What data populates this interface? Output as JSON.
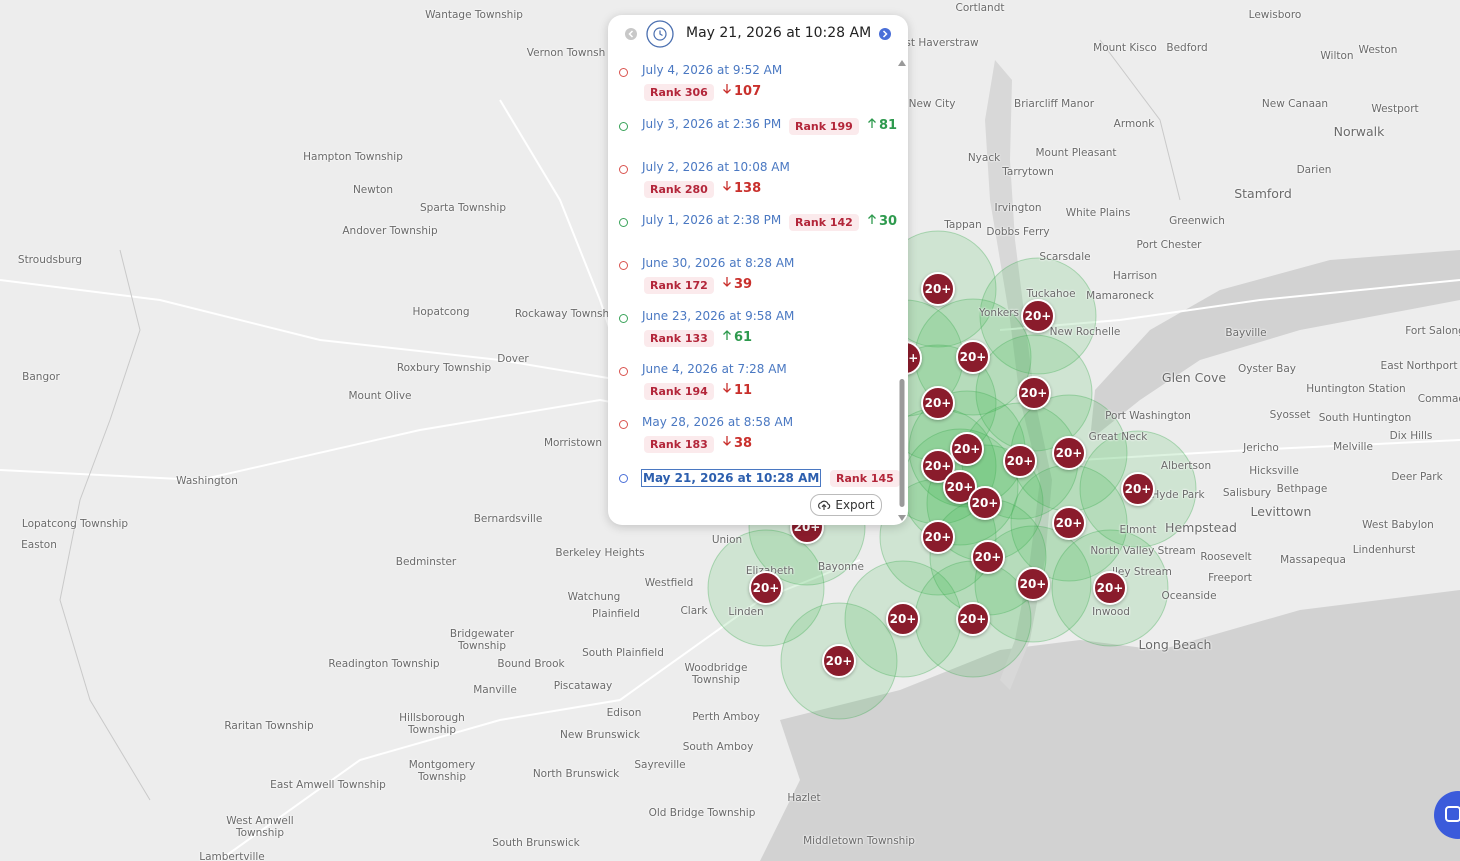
{
  "map": {
    "cluster_label": "20+",
    "places": [
      "Wantage Township",
      "Vernon Townsh",
      "Cortlandt",
      "Lewisboro",
      "Mount Kisco",
      "Bedford",
      "Wilton",
      "Weston",
      "st Haverstraw",
      "Hampton Township",
      "Newton",
      "Sparta Township",
      "Andover Township",
      "Stroudsburg",
      "Hopatcong",
      "Rockaway Townsh",
      "Dover",
      "Roxbury Township",
      "Bangor",
      "Mount Olive",
      "Morristown",
      "Washington",
      "Bernardsville",
      "Lopatcong Township",
      "Easton",
      "Berkeley Heights",
      "Bedminster",
      "Westfield",
      "Watchung",
      "Plainfield",
      "Clark",
      "Bridgewater Township",
      "Readington Township",
      "Bound Brook",
      "South Plainfield",
      "Manville",
      "Piscataway",
      "Woodbridge Township",
      "Raritan Township",
      "Hillsborough Township",
      "Edison",
      "Perth Amboy",
      "New Brunswick",
      "South Amboy",
      "Montgomery Township",
      "Sayreville",
      "North Brunswick",
      "East Amwell Township",
      "Hazlet",
      "Old Bridge Township",
      "West Amwell Township",
      "South Brunswick",
      "Middletown Township",
      "Lambertville",
      "Union",
      "Elizabeth",
      "Bayonne",
      "Linden",
      "New City",
      "Briarcliff Manor",
      "Armonk",
      "New Canaan",
      "Westport",
      "Norwalk",
      "Nyack",
      "Mount Pleasant",
      "Tarrytown",
      "Darien",
      "Stamford",
      "Irvington",
      "White Plains",
      "Greenwich",
      "Tappan",
      "Dobbs Ferry",
      "Port Chester",
      "Scarsdale",
      "Harrison",
      "Tuckahoe",
      "Mamaroneck",
      "Yonkers",
      "New Rochelle",
      "Bayville",
      "Fort Salong",
      "East Northport",
      "Oyster Bay",
      "Glen Cove",
      "Huntington Station",
      "Commac",
      "Port Washington",
      "Syosset",
      "South Huntington",
      "Dix Hills",
      "Great Neck",
      "Jericho",
      "Melville",
      "Albertson",
      "Hicksville",
      "Deer Park",
      "Hyde Park",
      "Salisbury",
      "Bethpage",
      "Levittown",
      "Elmont",
      "Hempstead",
      "West Babylon",
      "North Valley Stream",
      "Roosevelt",
      "Lindenhurst",
      "Massapequa",
      "lley Stream",
      "Freeport",
      "Oceanside",
      "Inwood",
      "Long Beach"
    ]
  },
  "panel": {
    "header_date": "May 21, 2026 at 10:28 AM",
    "entries": [
      {
        "date": "July 4, 2026 at 9:52 AM",
        "rank": "Rank 306",
        "direction": "down",
        "change": 107
      },
      {
        "date": "July 3, 2026 at 2:36 PM",
        "rank": "Rank 199",
        "direction": "up",
        "change": 81
      },
      {
        "date": "July 2, 2026 at 10:08 AM",
        "rank": "Rank 280",
        "direction": "down",
        "change": 138
      },
      {
        "date": "July 1, 2026 at 2:38 PM",
        "rank": "Rank 142",
        "direction": "up",
        "change": 30
      },
      {
        "date": "June 30, 2026 at 8:28 AM",
        "rank": "Rank 172",
        "direction": "down",
        "change": 39
      },
      {
        "date": "June 23, 2026 at 9:58 AM",
        "rank": "Rank 133",
        "direction": "up",
        "change": 61
      },
      {
        "date": "June 4, 2026 at 7:28 AM",
        "rank": "Rank 194",
        "direction": "down",
        "change": 11
      },
      {
        "date": "May 28, 2026 at 8:58 AM",
        "rank": "Rank 183",
        "direction": "down",
        "change": 38
      },
      {
        "date": "May 21, 2026 at 10:28 AM",
        "rank": "Rank 145",
        "selected": true
      }
    ],
    "export": "Export"
  }
}
